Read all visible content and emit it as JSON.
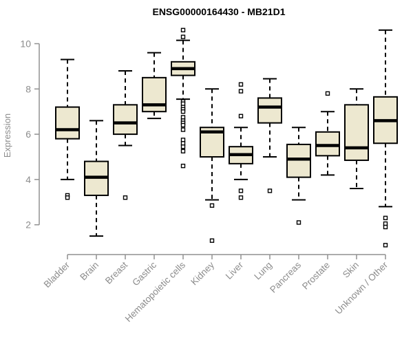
{
  "title": "ENSG00000164430 - MB21D1",
  "chart_data": {
    "type": "boxplot",
    "title": "ENSG00000164430 - MB21D1",
    "xlabel": "",
    "ylabel": "Expression",
    "yticks": [
      2,
      4,
      6,
      8,
      10
    ],
    "ylim": [
      1.0,
      10.8
    ],
    "grid": false,
    "legend": null,
    "categories": [
      "Bladder",
      "Brain",
      "Breast",
      "Gastric",
      "Hematopoietic cells",
      "Kidney",
      "Liver",
      "Lung",
      "Pancreas",
      "Prostate",
      "Skin",
      "Unknown / Other"
    ],
    "boxes": [
      {
        "category": "Bladder",
        "whisker_low": 4.0,
        "q1": 5.8,
        "median": 6.2,
        "q3": 7.2,
        "whisker_high": 9.3,
        "outliers": [
          3.3,
          3.2
        ]
      },
      {
        "category": "Brain",
        "whisker_low": 1.5,
        "q1": 3.3,
        "median": 4.1,
        "q3": 4.8,
        "whisker_high": 6.6,
        "outliers": []
      },
      {
        "category": "Breast",
        "whisker_low": 5.5,
        "q1": 6.0,
        "median": 6.5,
        "q3": 7.3,
        "whisker_high": 8.8,
        "outliers": [
          3.2
        ]
      },
      {
        "category": "Gastric",
        "whisker_low": 6.7,
        "q1": 7.0,
        "median": 7.3,
        "q3": 8.5,
        "whisker_high": 9.6,
        "outliers": []
      },
      {
        "category": "Hematopoietic cells",
        "whisker_low": 7.55,
        "q1": 8.6,
        "median": 8.9,
        "q3": 9.2,
        "whisker_high": 10.15,
        "outliers": [
          10.6,
          10.3,
          7.45,
          7.35,
          7.2,
          7.1,
          7.0,
          6.75,
          6.6,
          6.5,
          6.4,
          6.2,
          5.75,
          5.6,
          5.45,
          5.25,
          4.6
        ]
      },
      {
        "category": "Kidney",
        "whisker_low": 3.1,
        "q1": 5.0,
        "median": 6.1,
        "q3": 6.3,
        "whisker_high": 8.0,
        "outliers": [
          2.85,
          1.3
        ]
      },
      {
        "category": "Liver",
        "whisker_low": 4.0,
        "q1": 4.7,
        "median": 5.1,
        "q3": 5.45,
        "whisker_high": 6.3,
        "outliers": [
          8.2,
          7.9,
          6.8,
          3.5,
          3.2
        ]
      },
      {
        "category": "Lung",
        "whisker_low": 5.0,
        "q1": 6.5,
        "median": 7.2,
        "q3": 7.6,
        "whisker_high": 8.45,
        "outliers": [
          3.5
        ]
      },
      {
        "category": "Pancreas",
        "whisker_low": 3.1,
        "q1": 4.1,
        "median": 4.9,
        "q3": 5.55,
        "whisker_high": 6.3,
        "outliers": [
          2.1
        ]
      },
      {
        "category": "Prostate",
        "whisker_low": 4.2,
        "q1": 5.05,
        "median": 5.5,
        "q3": 6.1,
        "whisker_high": 7.0,
        "outliers": [
          7.8
        ]
      },
      {
        "category": "Skin",
        "whisker_low": 3.6,
        "q1": 4.85,
        "median": 5.4,
        "q3": 7.3,
        "whisker_high": 8.0,
        "outliers": []
      },
      {
        "category": "Unknown / Other",
        "whisker_low": 2.8,
        "q1": 5.6,
        "median": 6.6,
        "q3": 7.65,
        "whisker_high": 10.6,
        "outliers": [
          2.3,
          2.05,
          1.9,
          1.1
        ]
      }
    ],
    "colors": {
      "box_fill": "#EDE8D0",
      "box_border": "#000000",
      "median": "#000000",
      "whisker": "#000000",
      "outlier_border": "#000000",
      "axis_line": "#909090",
      "axis_text": "#8c8c8c",
      "title": "#000000",
      "background": "#ffffff"
    }
  }
}
